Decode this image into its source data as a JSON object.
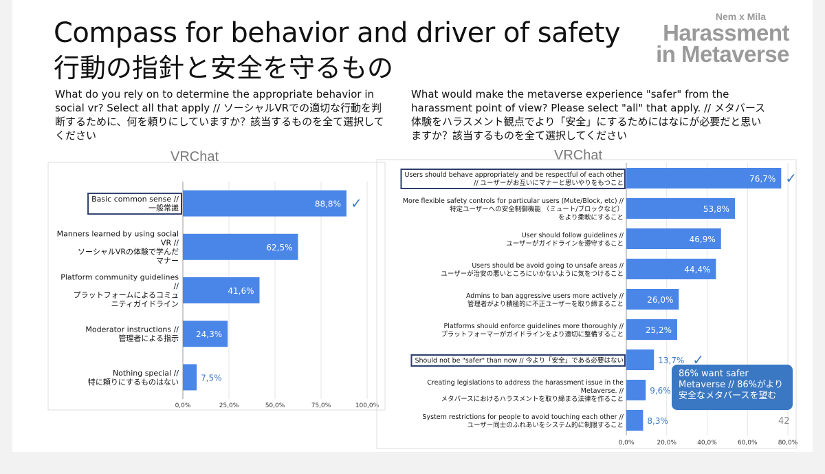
{
  "title": {
    "en": "Compass for behavior and driver of safety",
    "ja": "行動の指針と安全を守るもの"
  },
  "logo": {
    "small": "Nem x Mila",
    "line1": "Harassment",
    "line2": "in Metaverse"
  },
  "questions": {
    "left": "What do you rely on to determine the appropriate behavior in social vr? Select all that apply // ソーシャルVRでの適切な行動を判断するために、何を頼りにしていますか？該当するものを全て選択してください",
    "right": "What would make the metaverse experience \"safer\" from the harassment point of view?  Please select \"all\" that apply. // メタバース体験をハラスメント観点でより「安全」にするためにはなにが必要だと思いますか？該当するものを全て選択してください"
  },
  "callout": {
    "line1": "86% want safer",
    "line2": "Metaverse // 86%がより",
    "line3": "安全なメタバースを望む"
  },
  "page_number": "42",
  "colors": {
    "bar": "#4a86e8",
    "highlight_box": "#2c3e6b",
    "check": "#3b78c3"
  },
  "chart_data": [
    {
      "type": "bar",
      "orientation": "horizontal",
      "title": "VRChat",
      "xlim": [
        0,
        100
      ],
      "xticks": [
        "0,0%",
        "25,0%",
        "50,0%",
        "75,0%",
        "100,0%"
      ],
      "categories": [
        [
          "Basic common sense //",
          "一般常識"
        ],
        [
          "Manners learned by using social",
          "VR //",
          "ソーシャルVRの体験で学んだ",
          "マナー"
        ],
        [
          "Platform community guidelines",
          "//",
          "プラットフォームによるコミュ",
          "ニティガイドライン"
        ],
        [
          "Moderator instructions //",
          "管理者による指示"
        ],
        [
          "Nothing special //",
          "特に頼りにするものはない"
        ]
      ],
      "values": [
        88.8,
        62.5,
        41.6,
        24.3,
        7.5
      ],
      "value_labels": [
        "88,8%",
        "62,5%",
        "41,6%",
        "24,3%",
        "7,5%"
      ],
      "highlighted": [
        0
      ],
      "checked": [
        0
      ]
    },
    {
      "type": "bar",
      "orientation": "horizontal",
      "title": "VRChat",
      "xlim": [
        0,
        80
      ],
      "xticks": [
        "0,0%",
        "20,0%",
        "40,0%",
        "60,0%",
        "80,0%"
      ],
      "categories": [
        [
          "Users should behave appropriately and be respectful of each other",
          "// ユーザーがお互いにマナーと思いやりをもつこと"
        ],
        [
          "More flexible safety controls for particular users (Mute/Block, etc)  //",
          "特定ユーザーへの安全制御機能 （ミュート/ブロックなど）",
          "をより柔軟にすること"
        ],
        [
          "User should follow guidelines //",
          "ユーザーがガイドラインを遵守すること"
        ],
        [
          "Users should be avoid going to unsafe areas //",
          "ユーザーが治安の悪いところにいかないように気をつけること"
        ],
        [
          "Admins to ban aggressive users more actively //",
          "管理者がより積極的に不正ユーザーを取り締まること"
        ],
        [
          "Platforms should enforce guidelines more thoroughly //",
          "プラットフォーマーがガイドラインをより適切に整備すること"
        ],
        [
          "Should not be \"safer\" than now // 今より「安全」である必要はない"
        ],
        [
          "Creating legislations to address the harassment issue in the",
          "Metaverse. //",
          "メタバースにおけるハラスメントを取り締まる法律を作ること"
        ],
        [
          "System restrictions for people to avoid touching each other //",
          "ユーザー同士のふれあいをシステム的に制限すること"
        ]
      ],
      "values": [
        76.7,
        53.8,
        46.9,
        44.4,
        26.0,
        25.2,
        13.7,
        9.6,
        8.3
      ],
      "value_labels": [
        "76,7%",
        "53,8%",
        "46,9%",
        "44,4%",
        "26,0%",
        "25,2%",
        "13,7%",
        "9,6%",
        "8,3%"
      ],
      "highlighted": [
        0,
        6
      ],
      "checked": [
        0,
        6
      ]
    }
  ]
}
